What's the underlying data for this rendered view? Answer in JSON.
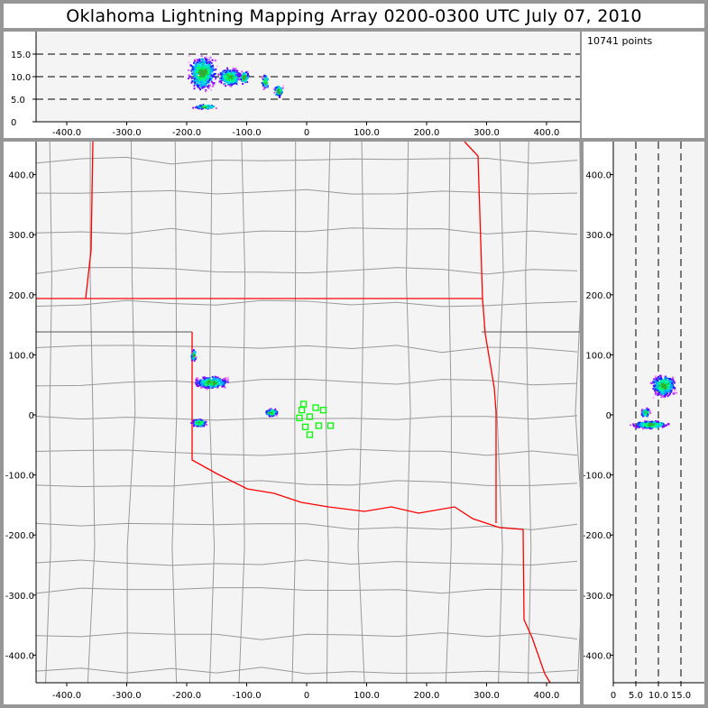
{
  "title": "Oklahoma Lightning Mapping Array   0200-0300 UTC  July 07, 2010",
  "points_label": "10741 points",
  "colors": {
    "border_red": "#ff0000",
    "county_gray": "#999999",
    "station_green": "#00ff00",
    "plot_bg": "#f4f4f4"
  },
  "top_panel": {
    "x_ticks": [
      "-400.0",
      "-300.0",
      "-200.0",
      "-100.0",
      "0",
      "100.0",
      "200.0",
      "300.0",
      "400.0"
    ],
    "y_ticks": [
      "0",
      "5.0",
      "10.0",
      "15.0"
    ]
  },
  "map_panel": {
    "x_ticks": [
      "-400.0",
      "-300.0",
      "-200.0",
      "-100.0",
      "0",
      "100.0",
      "200.0",
      "300.0",
      "400.0"
    ],
    "y_ticks": [
      "400.0",
      "300.0",
      "200.0",
      "100.0",
      "0",
      "-100.0",
      "-200.0",
      "-300.0",
      "-400.0"
    ]
  },
  "side_panel": {
    "x_ticks": [
      "0",
      "5.0",
      "10.0",
      "15.0"
    ],
    "y_ticks": [
      "400.0",
      "300.0",
      "200.0",
      "100.0",
      "0",
      "-100.0",
      "-200.0",
      "-300.0",
      "-400.0"
    ]
  }
}
